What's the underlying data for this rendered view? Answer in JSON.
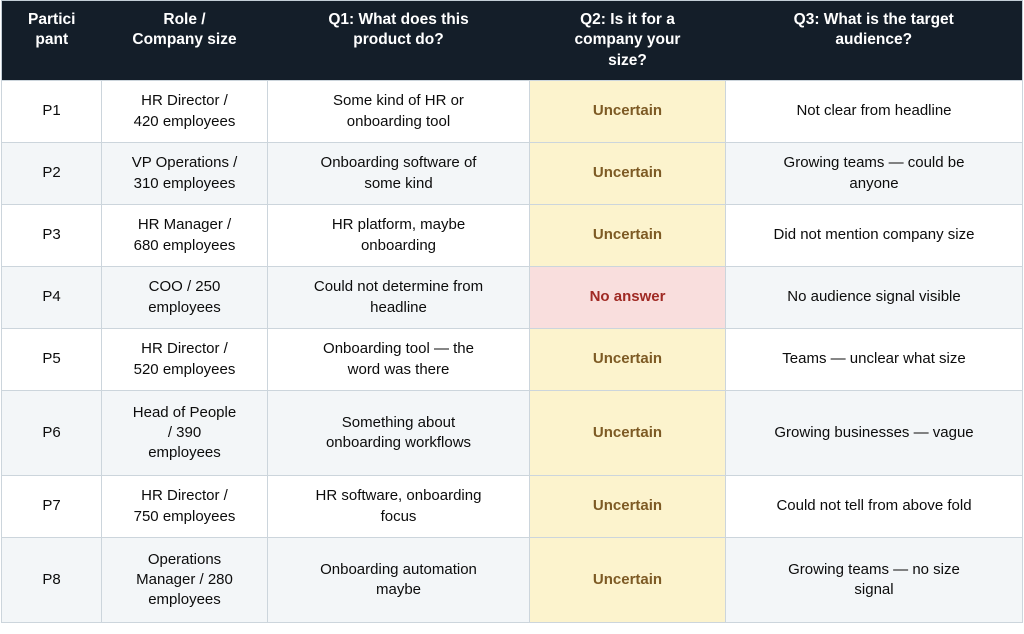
{
  "colors": {
    "header_bg": "#141e29",
    "header_text": "#ffffff",
    "uncertain_bg": "#fcf3cd",
    "uncertain_text": "#7d5a24",
    "no_answer_bg": "#f9dedd",
    "no_answer_text": "#a02a24",
    "row_alt_bg": "#f3f6f8",
    "border": "#ccd5dc"
  },
  "chart_data": {
    "type": "table",
    "columns": [
      "Partici\npant",
      "Role /\nCompany size",
      "Q1: What does this\nproduct do?",
      "Q2: Is it for a\ncompany your\nsize?",
      "Q3: What is the target\naudience?"
    ],
    "rows": [
      {
        "cells": [
          "P1",
          "HR Director /\n420 employees",
          "Some kind of HR or\nonboarding tool",
          "Uncertain",
          "Not clear from headline"
        ],
        "q2_status": "uncertain"
      },
      {
        "cells": [
          "P2",
          "VP Operations /\n310 employees",
          "Onboarding software of\nsome kind",
          "Uncertain",
          "Growing teams — could be\nanyone"
        ],
        "q2_status": "uncertain"
      },
      {
        "cells": [
          "P3",
          "HR Manager /\n680 employees",
          "HR platform, maybe\nonboarding",
          "Uncertain",
          "Did not mention company size"
        ],
        "q2_status": "uncertain"
      },
      {
        "cells": [
          "P4",
          "COO / 250\nemployees",
          "Could not determine from\nheadline",
          "No answer",
          "No audience signal visible"
        ],
        "q2_status": "no-answer"
      },
      {
        "cells": [
          "P5",
          "HR Director /\n520 employees",
          "Onboarding tool — the\nword was there",
          "Uncertain",
          "Teams — unclear what size"
        ],
        "q2_status": "uncertain"
      },
      {
        "cells": [
          "P6",
          "Head of People\n/ 390\nemployees",
          "Something about\nonboarding workflows",
          "Uncertain",
          "Growing businesses — vague"
        ],
        "q2_status": "uncertain"
      },
      {
        "cells": [
          "P7",
          "HR Director /\n750 employees",
          "HR software, onboarding\nfocus",
          "Uncertain",
          "Could not tell from above fold"
        ],
        "q2_status": "uncertain"
      },
      {
        "cells": [
          "P8",
          "Operations\nManager / 280\nemployees",
          "Onboarding automation\nmaybe",
          "Uncertain",
          "Growing teams — no size\nsignal"
        ],
        "q2_status": "uncertain"
      }
    ]
  }
}
